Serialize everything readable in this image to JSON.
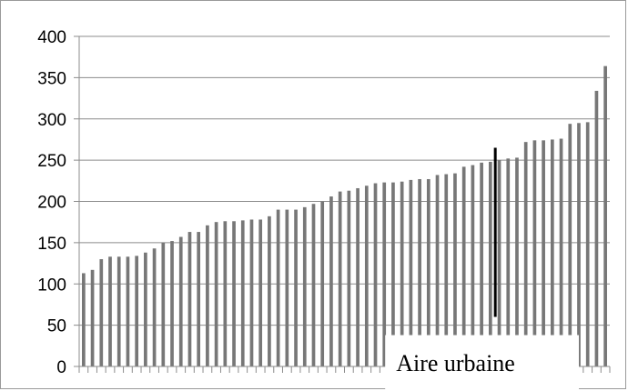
{
  "chart_data": {
    "type": "bar",
    "title": "",
    "xlabel": "",
    "ylabel": "",
    "ylim": [
      0,
      400
    ],
    "yticks": [
      0,
      50,
      100,
      150,
      200,
      250,
      300,
      350,
      400
    ],
    "grid": true,
    "bar_color": "#777777",
    "annotation": {
      "text": "Aire urbaine",
      "marker_category_index": 47,
      "marker_range": [
        60,
        265
      ],
      "marker_color": "#000000"
    },
    "values": [
      113,
      117,
      130,
      133,
      133,
      133,
      134,
      138,
      143,
      150,
      152,
      157,
      163,
      163,
      171,
      175,
      176,
      176,
      177,
      178,
      178,
      182,
      190,
      190,
      190,
      193,
      197,
      200,
      206,
      212,
      213,
      216,
      219,
      222,
      223,
      223,
      224,
      226,
      227,
      227,
      232,
      233,
      234,
      242,
      244,
      247,
      248,
      250,
      252,
      253,
      272,
      274,
      274,
      275,
      276,
      294,
      295,
      296,
      334,
      364
    ]
  }
}
